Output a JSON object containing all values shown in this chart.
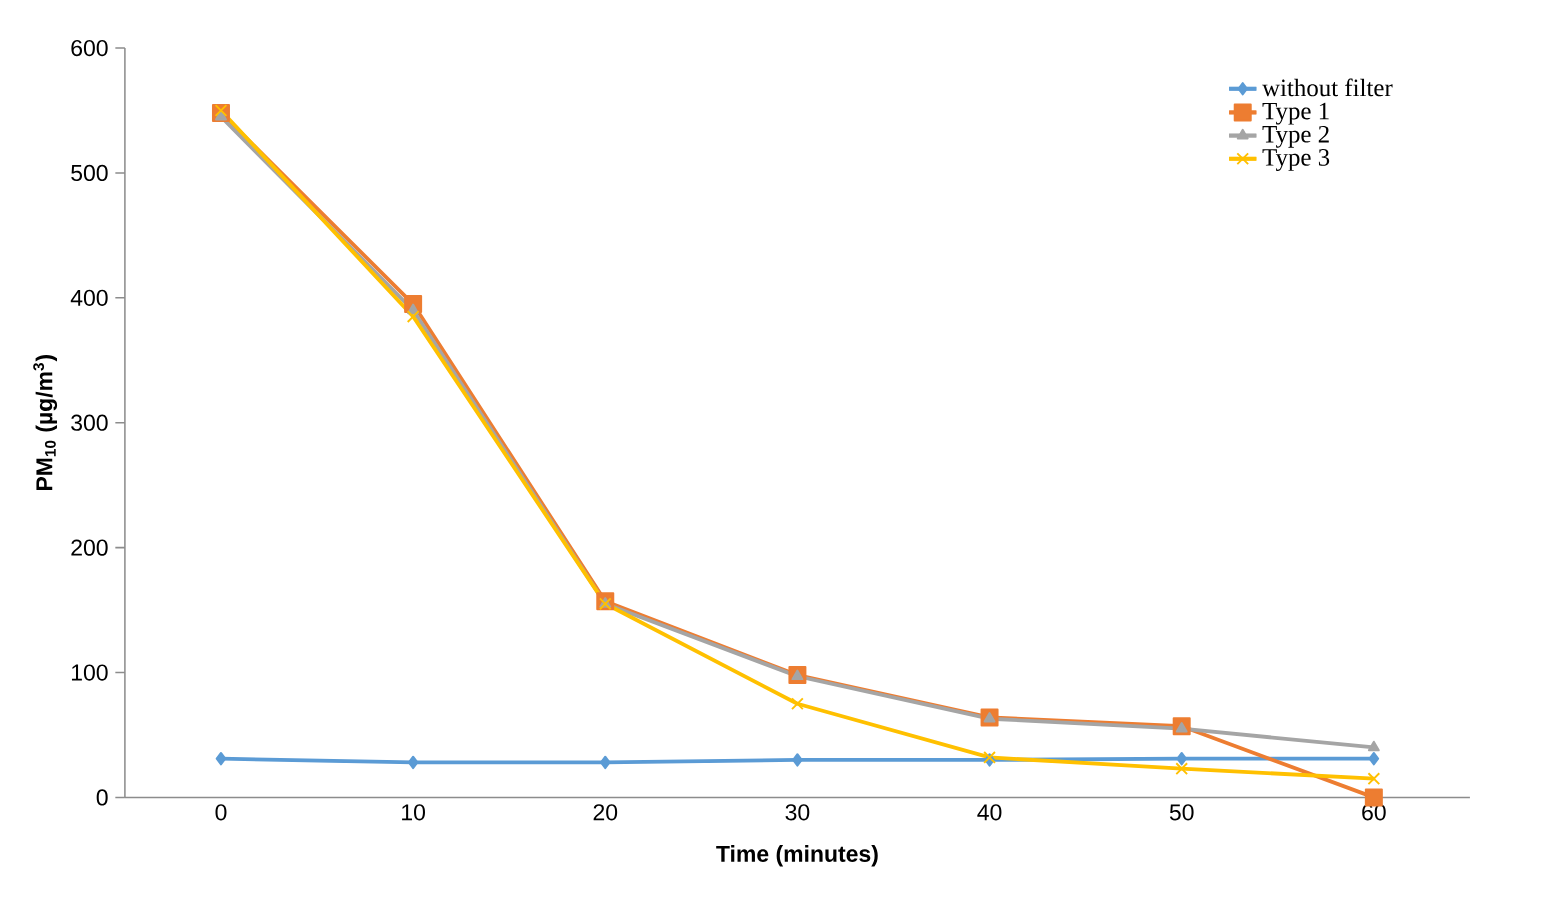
{
  "chart_data": {
    "type": "line",
    "xlabel": "Time (minutes)",
    "ylabel": "PM$_{10}$ (µg/m$^{3}$)",
    "categories": [
      "0",
      "10",
      "20",
      "30",
      "40",
      "50",
      "60"
    ],
    "ylim": [
      0,
      600
    ],
    "yticks": [
      0,
      100,
      200,
      300,
      400,
      500,
      600
    ],
    "grid": false,
    "legend": "top right",
    "series": [
      {
        "name": "without filter",
        "color": "#5b9bd5",
        "marker": "diamond",
        "values": [
          31,
          28,
          28,
          30,
          30,
          31,
          31
        ]
      },
      {
        "name": "Type 1",
        "color": "#ed7d31",
        "marker": "square",
        "values": [
          548,
          395,
          157,
          98,
          64,
          57,
          0
        ]
      },
      {
        "name": "Type 2",
        "color": "#a5a5a5",
        "marker": "triangle",
        "values": [
          545,
          390,
          155,
          97,
          63,
          55,
          40
        ]
      },
      {
        "name": "Type 3",
        "color": "#ffc000",
        "marker": "cross",
        "values": [
          550,
          385,
          155,
          75,
          32,
          23,
          15
        ]
      }
    ]
  }
}
